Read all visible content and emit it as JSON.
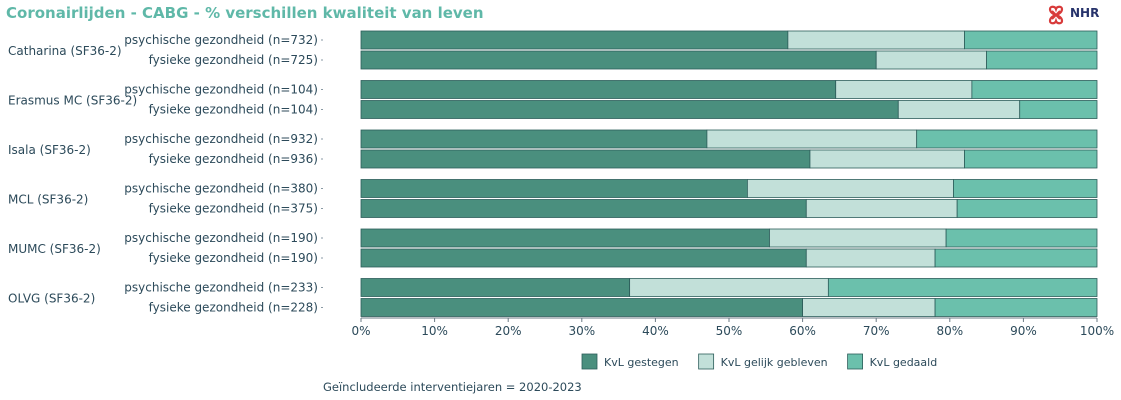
{
  "page": {
    "title": "Coronairlijden - CABG - % verschillen kwaliteit van leven",
    "logo_text": "NHR",
    "footnote": "Geïncludeerde interventiejaren = 2020-2023"
  },
  "colors": {
    "title": "#5fb8a8",
    "series": [
      "#4a8f7e",
      "#c2e0d9",
      "#6bc0ac"
    ],
    "bar_border": "#2c5d5a",
    "logo_red": "#d83a3a",
    "logo_text": "#27336b"
  },
  "chart_data": {
    "type": "bar",
    "orientation": "horizontal",
    "stacked": "percent",
    "groups": [
      {
        "label": "Catharina (SF36-2)",
        "categories": [
          "psychische gezondheid (n=732)",
          "fysieke gezondheid (n=725)"
        ]
      },
      {
        "label": "Erasmus MC (SF36-2)",
        "categories": [
          "psychische gezondheid (n=104)",
          "fysieke gezondheid (n=104)"
        ]
      },
      {
        "label": "Isala (SF36-2)",
        "categories": [
          "psychische gezondheid (n=932)",
          "fysieke gezondheid (n=936)"
        ]
      },
      {
        "label": "MCL (SF36-2)",
        "categories": [
          "psychische gezondheid (n=380)",
          "fysieke gezondheid (n=375)"
        ]
      },
      {
        "label": "MUMC (SF36-2)",
        "categories": [
          "psychische gezondheid (n=190)",
          "fysieke gezondheid (n=190)"
        ]
      },
      {
        "label": "OLVG (SF36-2)",
        "categories": [
          "psychische gezondheid (n=233)",
          "fysieke gezondheid (n=228)"
        ]
      }
    ],
    "series": [
      {
        "name": "KvL gestegen",
        "values": [
          58,
          70,
          64.5,
          73,
          47,
          61,
          52.5,
          60.5,
          55.5,
          60.5,
          36.5,
          60
        ]
      },
      {
        "name": "KvL gelijk gebleven",
        "values": [
          24,
          15,
          18.5,
          16.5,
          28.5,
          21,
          28,
          20.5,
          24,
          17.5,
          27,
          18
        ]
      },
      {
        "name": "KvL gedaald",
        "values": [
          18,
          15,
          17,
          10.5,
          24.5,
          18,
          19.5,
          19,
          20.5,
          22,
          36.5,
          22
        ]
      }
    ],
    "xlim": [
      0,
      100
    ],
    "xticks": [
      "0%",
      "10%",
      "20%",
      "30%",
      "40%",
      "50%",
      "60%",
      "70%",
      "80%",
      "90%",
      "100%"
    ],
    "legend_position": "bottom-center",
    "grid": false
  }
}
